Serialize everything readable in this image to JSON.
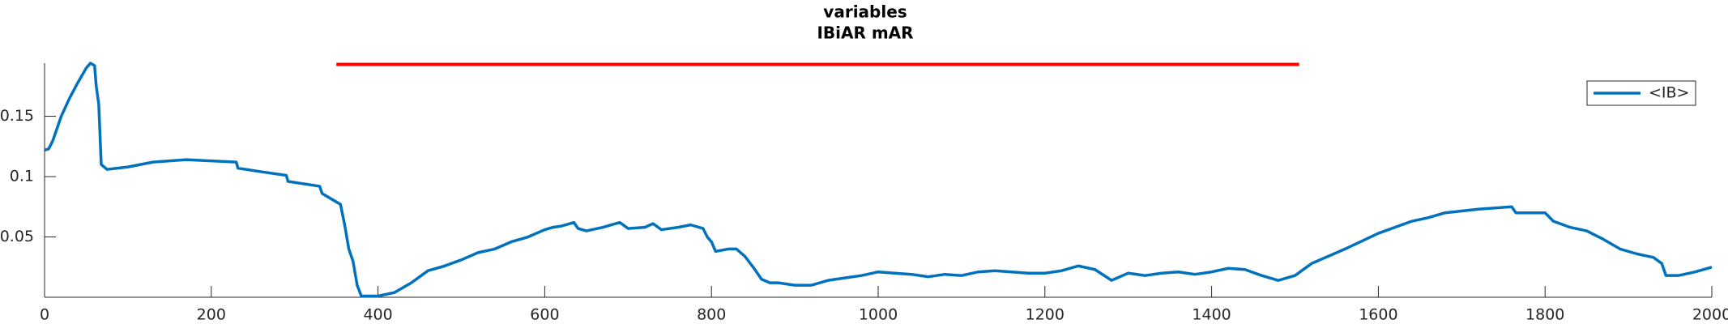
{
  "chart_data": {
    "type": "line",
    "title": [
      "variables",
      "IBiAR mAR"
    ],
    "x": [
      0,
      5,
      10,
      20,
      30,
      40,
      50,
      55,
      60,
      62,
      65,
      68,
      75,
      100,
      130,
      170,
      200,
      230,
      232,
      260,
      290,
      292,
      330,
      333,
      350,
      355,
      360,
      365,
      370,
      375,
      380,
      400,
      420,
      440,
      460,
      480,
      500,
      520,
      540,
      560,
      580,
      600,
      610,
      620,
      635,
      640,
      650,
      670,
      690,
      700,
      720,
      730,
      740,
      760,
      775,
      790,
      795,
      800,
      805,
      820,
      830,
      840,
      850,
      860,
      870,
      880,
      900,
      920,
      940,
      960,
      980,
      1000,
      1020,
      1040,
      1060,
      1080,
      1100,
      1120,
      1140,
      1160,
      1180,
      1200,
      1220,
      1240,
      1260,
      1280,
      1300,
      1320,
      1340,
      1360,
      1380,
      1400,
      1420,
      1440,
      1460,
      1480,
      1500,
      1520,
      1560,
      1600,
      1640,
      1660,
      1680,
      1720,
      1760,
      1765,
      1800,
      1810,
      1830,
      1850,
      1870,
      1890,
      1910,
      1930,
      1940,
      1945,
      1960,
      1980,
      2000
    ],
    "series": [
      {
        "name": "<IB>",
        "color": "#0072bd",
        "values": [
          0.122,
          0.123,
          0.13,
          0.15,
          0.165,
          0.178,
          0.19,
          0.194,
          0.192,
          0.175,
          0.16,
          0.11,
          0.106,
          0.108,
          0.112,
          0.114,
          0.113,
          0.112,
          0.107,
          0.104,
          0.101,
          0.096,
          0.092,
          0.086,
          0.079,
          0.077,
          0.06,
          0.04,
          0.03,
          0.01,
          0.001,
          0.001,
          0.004,
          0.012,
          0.022,
          0.026,
          0.031,
          0.037,
          0.04,
          0.046,
          0.05,
          0.056,
          0.058,
          0.059,
          0.062,
          0.057,
          0.055,
          0.058,
          0.062,
          0.057,
          0.058,
          0.061,
          0.056,
          0.058,
          0.06,
          0.057,
          0.05,
          0.046,
          0.038,
          0.04,
          0.04,
          0.034,
          0.025,
          0.015,
          0.012,
          0.012,
          0.01,
          0.01,
          0.014,
          0.016,
          0.018,
          0.021,
          0.02,
          0.019,
          0.017,
          0.019,
          0.018,
          0.021,
          0.022,
          0.021,
          0.02,
          0.02,
          0.022,
          0.026,
          0.023,
          0.014,
          0.02,
          0.018,
          0.02,
          0.021,
          0.019,
          0.021,
          0.024,
          0.023,
          0.018,
          0.014,
          0.018,
          0.028,
          0.04,
          0.053,
          0.063,
          0.066,
          0.07,
          0.073,
          0.075,
          0.07,
          0.07,
          0.063,
          0.058,
          0.055,
          0.048,
          0.04,
          0.036,
          0.033,
          0.028,
          0.018,
          0.018,
          0.021,
          0.025
        ]
      }
    ],
    "marker_line": {
      "color": "#ff0000",
      "x": [
        350,
        1505
      ],
      "y": [
        0.193,
        0.193
      ]
    },
    "xlim": [
      0,
      2000
    ],
    "ylim": [
      0,
      0.194
    ],
    "xticks": [
      0,
      200,
      400,
      600,
      800,
      1000,
      1200,
      1400,
      1600,
      1800,
      2000
    ],
    "yticks": [
      0.05,
      0.1,
      0.15
    ],
    "grid": false,
    "legend": "northeast"
  }
}
